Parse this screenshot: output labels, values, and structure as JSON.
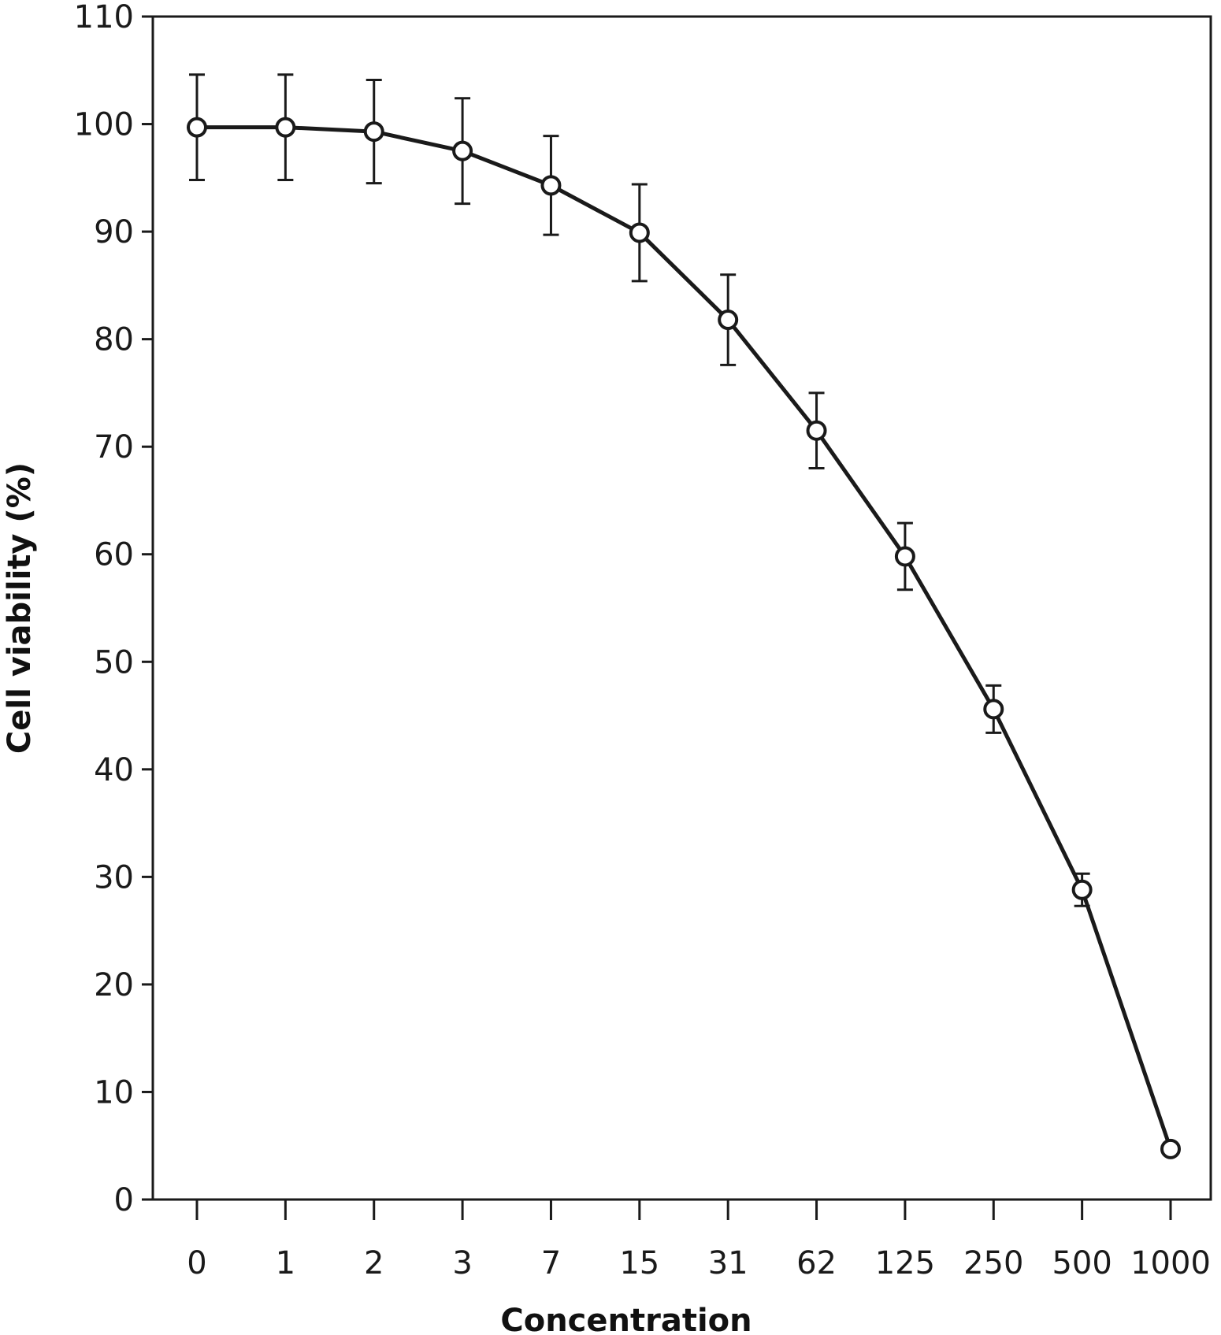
{
  "chart_data": {
    "type": "line",
    "title": "",
    "xlabel": "Concentration",
    "ylabel": "Cell viability (%)",
    "categories": [
      "0",
      "1",
      "2",
      "3",
      "7",
      "15",
      "31",
      "62",
      "125",
      "250",
      "500",
      "1000"
    ],
    "series": [
      {
        "values": [
          99.7,
          99.7,
          99.3,
          97.5,
          94.3,
          89.9,
          81.8,
          71.5,
          59.8,
          45.6,
          28.8,
          4.7
        ],
        "error": [
          4.9,
          4.9,
          4.8,
          4.9,
          4.6,
          4.5,
          4.2,
          3.5,
          3.1,
          2.2,
          1.5,
          0
        ]
      }
    ],
    "ylim": [
      0,
      110
    ],
    "yticks": [
      0,
      10,
      20,
      30,
      40,
      50,
      60,
      70,
      80,
      90,
      100,
      110
    ],
    "grid": false,
    "legend": "none",
    "colors": {
      "line": "#1a1a1a",
      "marker_fill": "#ffffff"
    }
  }
}
